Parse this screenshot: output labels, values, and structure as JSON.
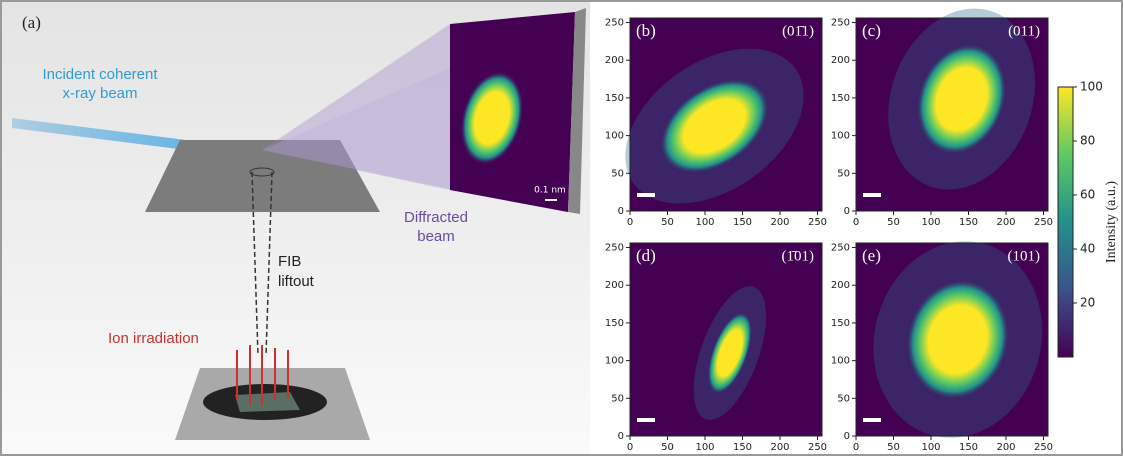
{
  "panel_a": {
    "label": "(a)",
    "incident_beam": [
      "Incident coherent",
      "x-ray beam"
    ],
    "diffracted_beam": [
      "Diffracted",
      "beam"
    ],
    "fib_liftout": [
      "FIB",
      "liftout"
    ],
    "ion_irradiation": "Ion irradiation",
    "scale_bar": "0.1 nm"
  },
  "heatmaps": [
    {
      "label": "(b)",
      "plane": "(01̄1)",
      "xlim": [
        0,
        256
      ],
      "ylim": [
        0,
        256
      ],
      "xticks": [
        0,
        50,
        100,
        150,
        200,
        250
      ],
      "yticks": [
        0,
        50,
        100,
        150,
        200,
        250
      ]
    },
    {
      "label": "(c)",
      "plane": "(011)",
      "xlim": [
        0,
        256
      ],
      "ylim": [
        0,
        256
      ],
      "xticks": [
        0,
        50,
        100,
        150,
        200,
        250
      ],
      "yticks": [
        0,
        50,
        100,
        150,
        200,
        250
      ]
    },
    {
      "label": "(d)",
      "plane": "(1̄01)",
      "xlim": [
        0,
        256
      ],
      "ylim": [
        0,
        256
      ],
      "xticks": [
        0,
        50,
        100,
        150,
        200,
        250
      ],
      "yticks": [
        0,
        50,
        100,
        150,
        200,
        250
      ]
    },
    {
      "label": "(e)",
      "plane": "(101)",
      "xlim": [
        0,
        256
      ],
      "ylim": [
        0,
        256
      ],
      "xticks": [
        0,
        50,
        100,
        150,
        200,
        250
      ],
      "yticks": [
        0,
        50,
        100,
        150,
        200,
        250
      ]
    }
  ],
  "colorbar": {
    "label": "Intensity (a.u.)",
    "lim": [
      0,
      100
    ],
    "ticks": [
      20,
      40,
      60,
      80,
      100
    ]
  }
}
